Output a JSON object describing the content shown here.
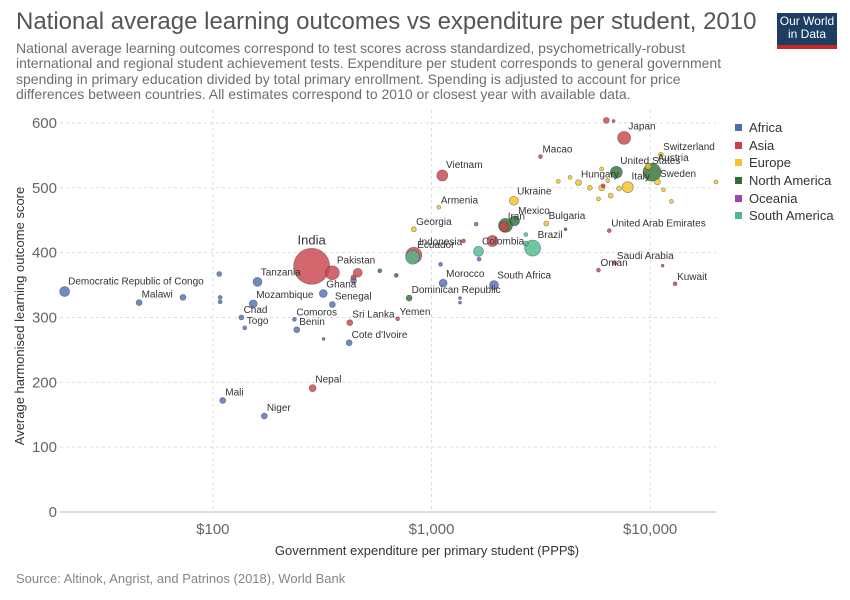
{
  "title": "National average learning outcomes vs expenditure per student, 2010",
  "subtitle": "National average learning outcomes correspond to test scores across standardized, psychometrically-robust international and regional student achievement tests. Expenditure per student corresponds to general government spending in primary education divided by total primary enrollment. Spending is adjusted to account for price differences between countries. All estimates correspond to 2010 or closest year with available data.",
  "logo": {
    "line1": "Our World",
    "line2": "in Data"
  },
  "source": "Source: Altinok, Angrist, and Patrinos (2018), World Bank",
  "colors": {
    "Africa": "#4c6bb9",
    "Asia": "#c8414a",
    "Europe": "#f4c224",
    "North America": "#2f6f34",
    "Oceania": "#a043b3",
    "South America": "#4cb98b"
  },
  "chart_data": {
    "type": "scatter",
    "xlabel": "Government expenditure per primary student (PPP$)",
    "ylabel": "Average harmonised learning outcome score",
    "x_scale": "log",
    "xlim": [
      20,
      20000
    ],
    "ylim": [
      0,
      620
    ],
    "x_ticks": [
      {
        "value": 100,
        "label": "$100"
      },
      {
        "value": 1000,
        "label": "$1,000"
      },
      {
        "value": 10000,
        "label": "$10,000"
      }
    ],
    "y_ticks": [
      0,
      100,
      200,
      300,
      400,
      500,
      600
    ],
    "grid": true,
    "legend_position": "right",
    "legend": [
      "Africa",
      "Asia",
      "Europe",
      "North America",
      "Oceania",
      "South America"
    ],
    "points": [
      {
        "name": "Democratic Republic of Congo",
        "x": 21,
        "y": 340,
        "region": "Africa",
        "size": 5,
        "label": true
      },
      {
        "name": "Malawi",
        "x": 46,
        "y": 323,
        "region": "Africa",
        "size": 3,
        "label": true
      },
      {
        "name": "",
        "x": 73,
        "y": 331,
        "region": "Africa",
        "size": 3,
        "label": false
      },
      {
        "name": "",
        "x": 107,
        "y": 367,
        "region": "Africa",
        "size": 2.5,
        "label": false
      },
      {
        "name": "",
        "x": 108,
        "y": 331,
        "region": "Africa",
        "size": 2,
        "label": false
      },
      {
        "name": "",
        "x": 108,
        "y": 324,
        "region": "Africa",
        "size": 2,
        "label": false
      },
      {
        "name": "Mali",
        "x": 111,
        "y": 172,
        "region": "Africa",
        "size": 3,
        "label": true
      },
      {
        "name": "Chad",
        "x": 135,
        "y": 300,
        "region": "Africa",
        "size": 2.5,
        "label": true
      },
      {
        "name": "Togo",
        "x": 140,
        "y": 284,
        "region": "Africa",
        "size": 2,
        "label": true
      },
      {
        "name": "Mozambique",
        "x": 153,
        "y": 321,
        "region": "Africa",
        "size": 4,
        "label": true
      },
      {
        "name": "Tanzania",
        "x": 160,
        "y": 355,
        "region": "Africa",
        "size": 4.5,
        "label": true
      },
      {
        "name": "Niger",
        "x": 172,
        "y": 148,
        "region": "Africa",
        "size": 3,
        "label": true
      },
      {
        "name": "Comoros",
        "x": 236,
        "y": 297,
        "region": "Africa",
        "size": 2,
        "label": true
      },
      {
        "name": "Benin",
        "x": 242,
        "y": 281,
        "region": "Africa",
        "size": 3,
        "label": true
      },
      {
        "name": "Nepal",
        "x": 286,
        "y": 191,
        "region": "Asia",
        "size": 3.5,
        "label": true
      },
      {
        "name": "India",
        "x": 283,
        "y": 379,
        "region": "Asia",
        "size": 18,
        "label": true
      },
      {
        "name": "Ghana",
        "x": 320,
        "y": 337,
        "region": "Africa",
        "size": 4,
        "label": true
      },
      {
        "name": "Senegal",
        "x": 352,
        "y": 320,
        "region": "Africa",
        "size": 3,
        "label": true
      },
      {
        "name": "Pakistan",
        "x": 352,
        "y": 369,
        "region": "Asia",
        "size": 7,
        "label": true
      },
      {
        "name": "",
        "x": 321,
        "y": 267,
        "region": "Africa",
        "size": 1.5,
        "label": false
      },
      {
        "name": "",
        "x": 440,
        "y": 357,
        "region": "Africa",
        "size": 3,
        "label": false
      },
      {
        "name": "",
        "x": 460,
        "y": 369,
        "region": "Asia",
        "size": 4.5,
        "label": false
      },
      {
        "name": "",
        "x": 440,
        "y": 362,
        "region": "Asia",
        "size": 2.5,
        "label": false
      },
      {
        "name": "",
        "x": 580,
        "y": 372,
        "region": "North America",
        "size": 2,
        "label": false
      },
      {
        "name": "",
        "x": 690,
        "y": 365,
        "region": "North America",
        "size": 2,
        "label": false
      },
      {
        "name": "Sri Lanka",
        "x": 423,
        "y": 292,
        "region": "Asia",
        "size": 3,
        "label": true
      },
      {
        "name": "Cote d'Ivoire",
        "x": 420,
        "y": 261,
        "region": "Africa",
        "size": 3,
        "label": true
      },
      {
        "name": "Yemen",
        "x": 700,
        "y": 298,
        "region": "Asia",
        "size": 2,
        "label": true
      },
      {
        "name": "Dominican Republic",
        "x": 790,
        "y": 330,
        "region": "North America",
        "size": 3,
        "label": true
      },
      {
        "name": "Ecuador",
        "x": 820,
        "y": 393,
        "region": "South America",
        "size": 7,
        "label": true
      },
      {
        "name": "Indonesia",
        "x": 830,
        "y": 396,
        "region": "Asia",
        "size": 8,
        "label": true
      },
      {
        "name": "Georgia",
        "x": 830,
        "y": 436,
        "region": "Europe",
        "size": 2.5,
        "label": true
      },
      {
        "name": "Armenia",
        "x": 1080,
        "y": 470,
        "region": "Europe",
        "size": 2,
        "label": true
      },
      {
        "name": "Vietnam",
        "x": 1120,
        "y": 519,
        "region": "Asia",
        "size": 5.5,
        "label": true
      },
      {
        "name": "Morocco",
        "x": 1130,
        "y": 353,
        "region": "Africa",
        "size": 4,
        "label": true
      },
      {
        "name": "",
        "x": 1100,
        "y": 382,
        "region": "Africa",
        "size": 2,
        "label": false
      },
      {
        "name": "",
        "x": 1400,
        "y": 418,
        "region": "Asia",
        "size": 2,
        "label": false
      },
      {
        "name": "",
        "x": 1350,
        "y": 330,
        "region": "Africa",
        "size": 1.5,
        "label": false
      },
      {
        "name": "",
        "x": 1350,
        "y": 323,
        "region": "Africa",
        "size": 1.5,
        "label": false
      },
      {
        "name": "",
        "x": 1600,
        "y": 444,
        "region": "Africa",
        "size": 2,
        "label": false
      },
      {
        "name": "Colombia",
        "x": 1640,
        "y": 402,
        "region": "South America",
        "size": 5,
        "label": true
      },
      {
        "name": "",
        "x": 1650,
        "y": 390,
        "region": "Africa",
        "size": 2,
        "label": false
      },
      {
        "name": "",
        "x": 1900,
        "y": 418,
        "region": "Asia",
        "size": 5.5,
        "label": true
      },
      {
        "name": "South Africa",
        "x": 1930,
        "y": 350,
        "region": "Africa",
        "size": 4.5,
        "label": true
      },
      {
        "name": "Iran",
        "x": 2150,
        "y": 440,
        "region": "Asia",
        "size": 5,
        "label": true
      },
      {
        "name": "",
        "x": 2180,
        "y": 442,
        "region": "North America",
        "size": 7,
        "label": false
      },
      {
        "name": "Mexico",
        "x": 2400,
        "y": 449,
        "region": "North America",
        "size": 5,
        "label": true
      },
      {
        "name": "Ukraine",
        "x": 2380,
        "y": 480,
        "region": "Europe",
        "size": 4.5,
        "label": true
      },
      {
        "name": "",
        "x": 2700,
        "y": 428,
        "region": "South America",
        "size": 2,
        "label": false
      },
      {
        "name": "",
        "x": 2700,
        "y": 414,
        "region": "South America",
        "size": 2.5,
        "label": false
      },
      {
        "name": "Brazil",
        "x": 2900,
        "y": 407,
        "region": "South America",
        "size": 8,
        "label": true
      },
      {
        "name": "Macao",
        "x": 3150,
        "y": 548,
        "region": "Asia",
        "size": 2,
        "label": true
      },
      {
        "name": "Bulgaria",
        "x": 3350,
        "y": 445,
        "region": "Europe",
        "size": 2.5,
        "label": true
      },
      {
        "name": "",
        "x": 4100,
        "y": 436,
        "region": "North America",
        "size": 1.5,
        "label": false
      },
      {
        "name": "",
        "x": 3800,
        "y": 510,
        "region": "Europe",
        "size": 2,
        "label": false
      },
      {
        "name": "",
        "x": 4300,
        "y": 516,
        "region": "Europe",
        "size": 2,
        "label": false
      },
      {
        "name": "Hungary",
        "x": 4700,
        "y": 508,
        "region": "Europe",
        "size": 3,
        "label": true
      },
      {
        "name": "",
        "x": 5300,
        "y": 500,
        "region": "Europe",
        "size": 2.5,
        "label": false
      },
      {
        "name": "",
        "x": 5800,
        "y": 483,
        "region": "Europe",
        "size": 2,
        "label": false
      },
      {
        "name": "",
        "x": 6000,
        "y": 500,
        "region": "Europe",
        "size": 3,
        "label": false
      },
      {
        "name": "",
        "x": 6000,
        "y": 529,
        "region": "Europe",
        "size": 2,
        "label": false
      },
      {
        "name": "",
        "x": 6400,
        "y": 511,
        "region": "Europe",
        "size": 2,
        "label": false
      },
      {
        "name": "",
        "x": 6600,
        "y": 488,
        "region": "Europe",
        "size": 2.5,
        "label": false
      },
      {
        "name": "United States",
        "x": 7000,
        "y": 524,
        "region": "North America",
        "size": 6,
        "label": true
      },
      {
        "name": "",
        "x": 7200,
        "y": 499,
        "region": "Europe",
        "size": 2.5,
        "label": false
      },
      {
        "name": "Oman",
        "x": 5800,
        "y": 373,
        "region": "Asia",
        "size": 2,
        "label": true
      },
      {
        "name": "Saudi Arabia",
        "x": 6900,
        "y": 384,
        "region": "Asia",
        "size": 2,
        "label": true
      },
      {
        "name": "United Arab Emirates",
        "x": 6500,
        "y": 434,
        "region": "Asia",
        "size": 2,
        "label": true
      },
      {
        "name": "",
        "x": 6100,
        "y": 503,
        "region": "Asia",
        "size": 2,
        "label": false
      },
      {
        "name": "",
        "x": 6300,
        "y": 604,
        "region": "Asia",
        "size": 3,
        "label": false
      },
      {
        "name": "",
        "x": 6800,
        "y": 603,
        "region": "Asia",
        "size": 1.5,
        "label": false
      },
      {
        "name": "Japan",
        "x": 7600,
        "y": 577,
        "region": "Asia",
        "size": 6.5,
        "label": true
      },
      {
        "name": "Italy",
        "x": 7900,
        "y": 501,
        "region": "Europe",
        "size": 5.5,
        "label": true
      },
      {
        "name": "Austria",
        "x": 10200,
        "y": 524,
        "region": "North America",
        "size": 9,
        "label": true
      },
      {
        "name": "",
        "x": 9800,
        "y": 533,
        "region": "Europe",
        "size": 3,
        "label": false
      },
      {
        "name": "Sweden",
        "x": 10800,
        "y": 509,
        "region": "Europe",
        "size": 3,
        "label": true
      },
      {
        "name": "Switzerland",
        "x": 11200,
        "y": 551,
        "region": "Europe",
        "size": 2.5,
        "label": true
      },
      {
        "name": "",
        "x": 11500,
        "y": 497,
        "region": "Europe",
        "size": 2,
        "label": false
      },
      {
        "name": "",
        "x": 12500,
        "y": 479,
        "region": "Europe",
        "size": 2,
        "label": false
      },
      {
        "name": "",
        "x": 20000,
        "y": 509,
        "region": "Europe",
        "size": 2,
        "label": false
      },
      {
        "name": "",
        "x": 11400,
        "y": 380,
        "region": "Asia",
        "size": 1.5,
        "label": false
      },
      {
        "name": "Kuwait",
        "x": 13000,
        "y": 352,
        "region": "Asia",
        "size": 2,
        "label": true
      }
    ]
  }
}
